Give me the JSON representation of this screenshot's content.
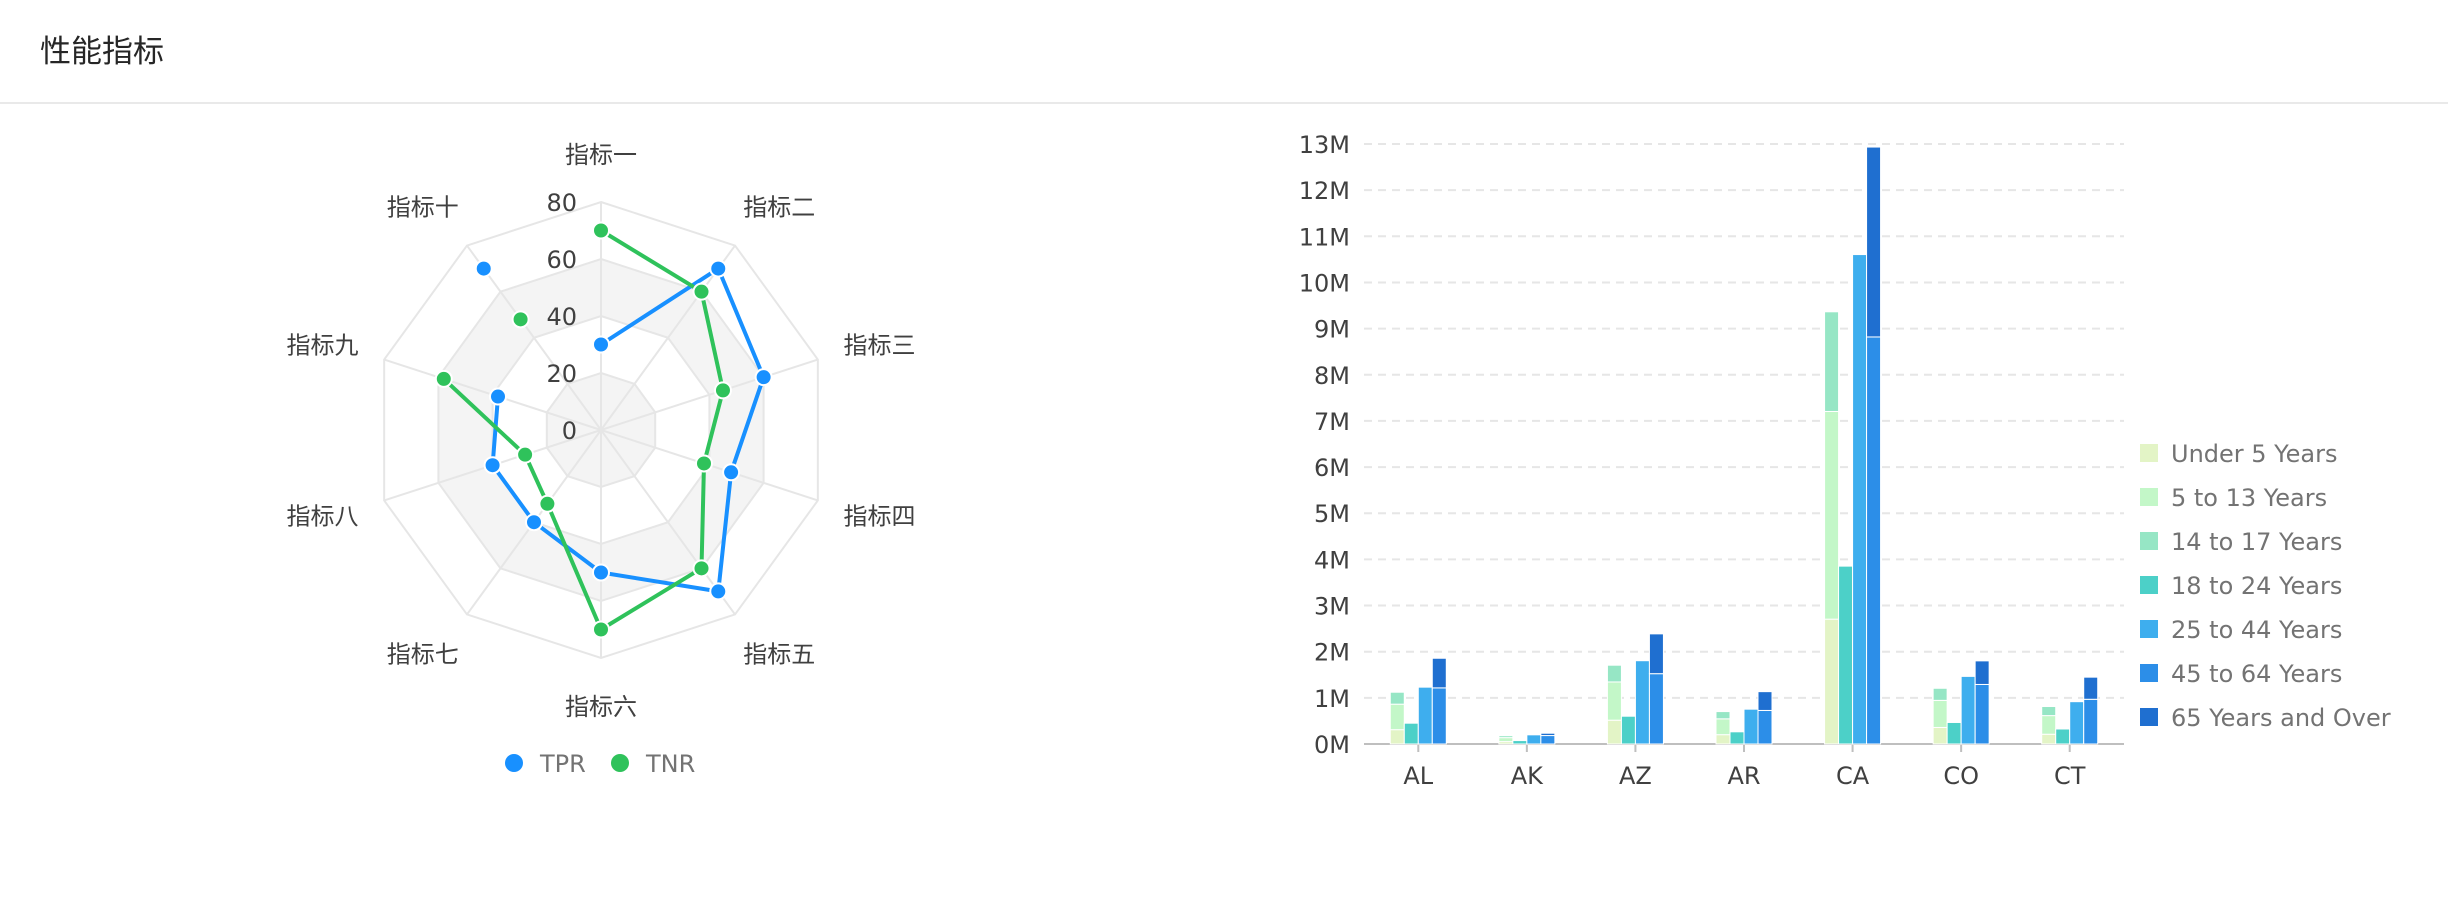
{
  "card": {
    "title": "性能指标"
  },
  "chart_data": [
    {
      "type": "radar",
      "indicators": [
        "指标一",
        "指标二",
        "指标三",
        "指标四",
        "指标五",
        "指标六",
        "指标七",
        "指标八",
        "指标九",
        "指标十"
      ],
      "radial_ticks": [
        "0",
        "20",
        "40",
        "60",
        "80"
      ],
      "rlim": [
        0,
        80
      ],
      "series": [
        {
          "name": "TPR",
          "color": "#1890ff",
          "values": [
            30,
            70,
            60,
            48,
            70,
            50,
            40,
            40,
            38,
            70
          ]
        },
        {
          "name": "TNR",
          "color": "#2fc25b",
          "values": [
            70,
            60,
            45,
            38,
            60,
            70,
            32,
            28,
            58,
            48
          ]
        }
      ],
      "legend": {
        "position": "bottom-center",
        "items": [
          "TPR",
          "TNR"
        ]
      }
    },
    {
      "type": "bar",
      "subtype": "grouped-stacked",
      "categories": [
        "AL",
        "AK",
        "AZ",
        "AR",
        "CA",
        "CO",
        "CT"
      ],
      "y_ticks": [
        "0M",
        "1M",
        "2M",
        "3M",
        "4M",
        "5M",
        "6M",
        "7M",
        "8M",
        "9M",
        "10M",
        "11M",
        "12M",
        "13M"
      ],
      "ylim": [
        0,
        13000000
      ],
      "grid": true,
      "legend": {
        "position": "right",
        "items": [
          "Under 5 Years",
          "5 to 13 Years",
          "14 to 17 Years",
          "18 to 24 Years",
          "25 to 44 Years",
          "45 to 64 Years",
          "65 Years and Over"
        ]
      },
      "series": [
        {
          "name": "Under 5 Years",
          "color": "#e3f4c6",
          "stack": 0,
          "values": [
            310504,
            52083,
            515910,
            202070,
            2704659,
            358280,
            211637
          ]
        },
        {
          "name": "5 to 13 Years",
          "color": "#c3f7c8",
          "stack": 0,
          "values": [
            552339,
            85640,
            828669,
            343207,
            4499890,
            587154,
            403658
          ]
        },
        {
          "name": "14 to 17 Years",
          "color": "#96e6c5",
          "stack": 0,
          "values": [
            259034,
            42153,
            362642,
            157204,
            2159981,
            261701,
            196918
          ]
        },
        {
          "name": "18 to 24 Years",
          "color": "#4cd0c8",
          "stack": 1,
          "values": [
            450818,
            74257,
            601943,
            264160,
            3853788,
            466194,
            325110
          ]
        },
        {
          "name": "25 to 44 Years",
          "color": "#3eaeee",
          "stack": 2,
          "values": [
            1231572,
            198724,
            1804762,
            754420,
            10604510,
            1464939,
            916955
          ]
        },
        {
          "name": "45 to 64 Years",
          "color": "#2c8ee8",
          "stack": 3,
          "values": [
            1215966,
            183159,
            1523681,
            727124,
            8819342,
            1290094,
            968967
          ]
        },
        {
          "name": "65 Years and Over",
          "color": "#1f6fd0",
          "stack": 3,
          "values": [
            641667,
            50277,
            862573,
            407205,
            4114496,
            511094,
            479219
          ]
        }
      ]
    }
  ]
}
